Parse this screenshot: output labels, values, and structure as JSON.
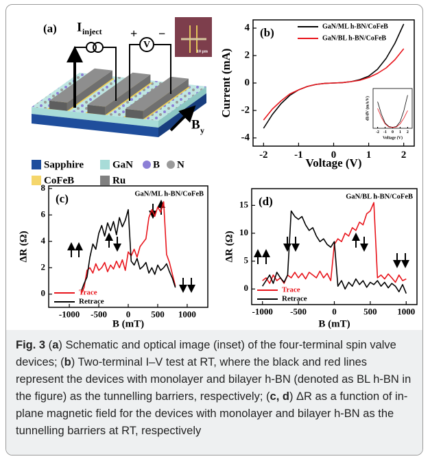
{
  "schematic": {
    "panel_label": "(a)",
    "current_label": "I",
    "current_subscript": "inject",
    "plus": "+",
    "voltmeter": "V",
    "minus": "−",
    "scale_bar": "10 μm",
    "field_label": "B",
    "field_subscript": "y",
    "legend": [
      "Sapphire",
      "GaN",
      "B",
      "N",
      "CoFeB",
      "Ru"
    ]
  },
  "chart_data": [
    {
      "type": "line",
      "panel_label": "(b)",
      "xlabel": "Voltage (V)",
      "ylabel": "Current (mA)",
      "xlim": [
        -2.3,
        2.3
      ],
      "xticks": [
        -2,
        -1,
        0,
        1,
        2
      ],
      "ylim": [
        -4.6,
        4.6
      ],
      "yticks": [
        -4,
        -2,
        0,
        2,
        4
      ],
      "legend": "upper right",
      "x": [
        -2,
        -1.75,
        -1.5,
        -1.25,
        -1,
        -0.75,
        -0.5,
        -0.25,
        0,
        0.25,
        0.5,
        0.75,
        1,
        1.25,
        1.5,
        1.75,
        2
      ],
      "series": [
        {
          "name": "GaN/ML h-BN/CoFeB",
          "color": "#000000",
          "values": [
            -3.3,
            -2.3,
            -1.5,
            -0.9,
            -0.5,
            -0.25,
            -0.1,
            -0.03,
            0,
            0.03,
            0.1,
            0.25,
            0.5,
            1.0,
            1.8,
            2.9,
            4.3
          ]
        },
        {
          "name": "GaN/BL h-BN/CoFeB",
          "color": "#e8141b",
          "values": [
            -2.7,
            -1.9,
            -1.3,
            -0.8,
            -0.5,
            -0.25,
            -0.1,
            -0.03,
            0,
            0.03,
            0.1,
            0.2,
            0.4,
            0.7,
            1.1,
            1.7,
            2.5
          ]
        }
      ]
    },
    {
      "type": "line",
      "xlabel": "Voltage (V)",
      "ylabel": "dI/dV (mA/V)",
      "xlim": [
        -2.6,
        2.6
      ],
      "xticks": [
        -2,
        -1,
        0,
        1,
        2
      ],
      "ylim": [
        0,
        9
      ],
      "x": [
        -2,
        -1.5,
        -1,
        -0.5,
        0,
        0.5,
        1,
        1.5,
        2
      ],
      "series": [
        {
          "color": "#000000",
          "values": [
            6,
            3.2,
            1.2,
            0.4,
            0.2,
            0.4,
            1.5,
            4,
            7.5
          ]
        },
        {
          "color": "#e8141b",
          "values": [
            4.5,
            2.5,
            1.0,
            0.3,
            0.2,
            0.3,
            1.0,
            2.3,
            4
          ]
        }
      ]
    },
    {
      "type": "line",
      "panel_label": "(c)",
      "title": "GaN/ML h-BN/CoFeB",
      "xlabel": "B (mT)",
      "ylabel": "ΔR (Ω)",
      "xlim": [
        -1350,
        1350
      ],
      "xticks": [
        -1000,
        -500,
        0,
        500,
        1000
      ],
      "ylim": [
        -1,
        8.2
      ],
      "yticks": [
        0,
        2,
        4,
        6,
        8
      ],
      "legend": "lower left",
      "x": [
        -800,
        -750,
        -700,
        -650,
        -600,
        -550,
        -500,
        -450,
        -400,
        -350,
        -300,
        -250,
        -200,
        -150,
        -100,
        -50,
        0,
        50,
        100,
        150,
        200,
        250,
        300,
        350,
        400,
        450,
        500,
        550,
        600,
        650,
        700,
        750,
        800
      ],
      "series": [
        {
          "name": "Trace",
          "color": "#e8141b",
          "values": [
            0,
            0.5,
            1.8,
            2.0,
            1.6,
            2.3,
            1.8,
            2.0,
            2.4,
            1.7,
            2.2,
            1.9,
            2.5,
            2.0,
            2.6,
            1.8,
            3.2,
            2.9,
            3.4,
            2.8,
            3.6,
            3.9,
            4.2,
            5.8,
            6.4,
            5.9,
            6.6,
            6.2,
            7.0,
            3.0,
            2.4,
            1.5,
            0.6
          ]
        },
        {
          "name": "Retrace",
          "color": "#000000",
          "values": [
            0.2,
            0.8,
            1.3,
            2.8,
            3.8,
            3.4,
            4.6,
            5.2,
            4.4,
            5.4,
            4.8,
            5.5,
            4.5,
            5.8,
            5.1,
            5.6,
            6.4,
            2.5,
            2.2,
            2.7,
            1.9,
            2.1,
            2.4,
            1.6,
            2.0,
            1.5,
            2.2,
            1.8,
            2.0,
            2.3,
            1.7,
            1.2,
            0.5
          ]
        }
      ]
    },
    {
      "type": "line",
      "panel_label": "(d)",
      "title": "GaN/BL h-BN/CoFeB",
      "xlabel": "B (mT)",
      "ylabel": "ΔR (Ω)",
      "xlim": [
        -1150,
        1150
      ],
      "xticks": [
        -1000,
        -500,
        0,
        500,
        1000
      ],
      "ylim": [
        -2.8,
        18
      ],
      "yticks": [
        0,
        5,
        10,
        15
      ],
      "legend": "lower left",
      "x": [
        -1000,
        -950,
        -900,
        -850,
        -800,
        -750,
        -700,
        -650,
        -600,
        -550,
        -500,
        -450,
        -400,
        -350,
        -300,
        -250,
        -200,
        -150,
        -100,
        -50,
        0,
        50,
        100,
        150,
        200,
        250,
        300,
        350,
        400,
        450,
        500,
        550,
        600,
        650,
        700,
        750,
        800,
        850,
        900,
        950,
        1000
      ],
      "series": [
        {
          "name": "Trace",
          "color": "#e8141b",
          "values": [
            1.5,
            2,
            1,
            2.5,
            1.5,
            2,
            1,
            2.5,
            2,
            3,
            2,
            2.8,
            1.8,
            3,
            2.5,
            2,
            3.2,
            2,
            2.8,
            1.5,
            8,
            9,
            8.5,
            10,
            9.5,
            11,
            10.5,
            12,
            11.5,
            13.5,
            14,
            15.5,
            2,
            2.5,
            1.8,
            2.7,
            2,
            1.2,
            2.5,
            1.5,
            1.8
          ]
        },
        {
          "name": "Retrace",
          "color": "#000000",
          "values": [
            0.5,
            1.5,
            2.5,
            1,
            3,
            2,
            1.2,
            2.5,
            14,
            13,
            12.5,
            13,
            11.5,
            10.5,
            11,
            9.5,
            8.5,
            9,
            8,
            7.5,
            8.5,
            0.5,
            1.5,
            0,
            1.2,
            0.5,
            1.8,
            0.8,
            1.5,
            0.3,
            1.2,
            0.8,
            1.5,
            0.5,
            1.2,
            0.2,
            1,
            0.5,
            -0.5,
            0.8,
            -0.8
          ]
        }
      ]
    }
  ],
  "caption": [
    {
      "text": "Fig. 3",
      "bold": true
    },
    {
      "text": " (",
      "bold": false
    },
    {
      "text": "a",
      "bold": true
    },
    {
      "text": ") Schematic and optical image (inset) of the four-terminal spin valve devices; (",
      "bold": false
    },
    {
      "text": "b",
      "bold": true
    },
    {
      "text": ") Two-terminal I–V test at RT, where the black and red lines represent the devices with monolayer and bilayer h-BN (denoted as BL h-BN in the figure) as the tunnelling barriers, respectively; (",
      "bold": false
    },
    {
      "text": "c, d",
      "bold": true
    },
    {
      "text": ") ΔR as a function of in-plane magnetic field for the devices with monolayer and bilayer h-BN as the tunnelling barriers at RT, respectively",
      "bold": false
    }
  ]
}
